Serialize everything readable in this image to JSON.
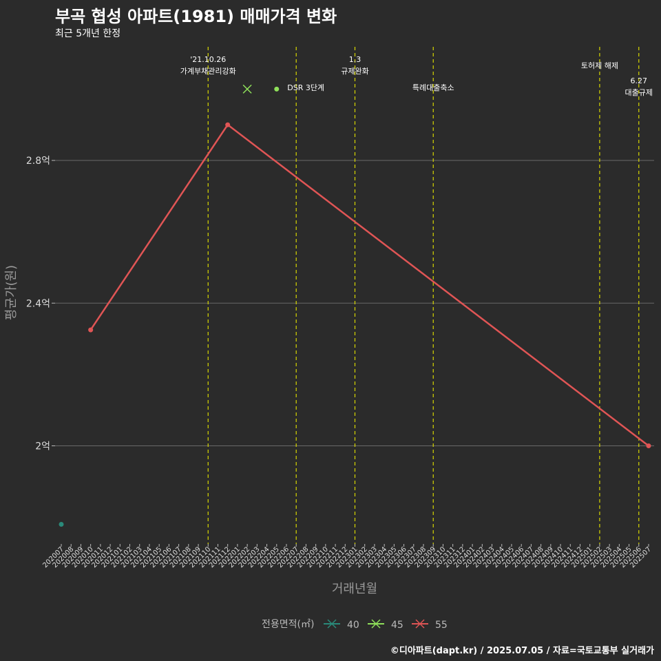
{
  "chart_data": {
    "type": "line",
    "title": "부곡 협성 아파트(1981) 매매가격 변화",
    "subtitle": "최근 5개년 한정",
    "xlabel": "거래년월",
    "ylabel": "평균가(원)",
    "caption": "©디아파트(dapt.kr) / 2025.07.05 / 자료=국토교통부 실거래가",
    "categories": [
      "202007",
      "202008",
      "202009",
      "202010",
      "202011",
      "202012",
      "202101",
      "202102",
      "202103",
      "202104",
      "202105",
      "202106",
      "202107",
      "202108",
      "202109",
      "202110",
      "202111",
      "202112",
      "202201",
      "202202",
      "202203",
      "202204",
      "202205",
      "202206",
      "202207",
      "202208",
      "202209",
      "202210",
      "202211",
      "202212",
      "202301",
      "202302",
      "202303",
      "202304",
      "202305",
      "202306",
      "202307",
      "202308",
      "202309",
      "202310",
      "202311",
      "202312",
      "202401",
      "202402",
      "202403",
      "202404",
      "202405",
      "202406",
      "202407",
      "202408",
      "202409",
      "202410",
      "202411",
      "202412",
      "202501",
      "202502",
      "202503",
      "202504",
      "202505",
      "202506",
      "202507"
    ],
    "ylim": [
      1.71,
      3.13
    ],
    "yticks": [
      {
        "value": 2.0,
        "label": "2억"
      },
      {
        "value": 2.4,
        "label": "2.4억"
      },
      {
        "value": 2.8,
        "label": "2.8억"
      }
    ],
    "series": [
      {
        "name": "40",
        "color": "#2a8a7a",
        "points": [
          {
            "x": "202007",
            "y": 1.78
          }
        ]
      },
      {
        "name": "45",
        "color": "#8fe05a",
        "points": [
          {
            "x": "202202",
            "y": 3.0
          },
          {
            "x": "202205",
            "y": 3.0
          }
        ]
      },
      {
        "name": "55",
        "color": "#e05555",
        "points": [
          {
            "x": "202010",
            "y": 2.325
          },
          {
            "x": "202112",
            "y": 2.9
          },
          {
            "x": "202507",
            "y": 2.0
          }
        ]
      }
    ],
    "events": [
      {
        "x": "202110",
        "lines": [
          "'21.10.26",
          "가계부채관리강화"
        ]
      },
      {
        "x": "202207",
        "lines": [
          "DSR 3단계"
        ]
      },
      {
        "x": "202301",
        "lines": [
          "1.3",
          "규제완화"
        ]
      },
      {
        "x": "202309",
        "lines": [
          "특례대출축소"
        ]
      },
      {
        "x": "202502",
        "lines": [
          "토허제 해제"
        ]
      },
      {
        "x": "202506",
        "lines": [
          "6.27",
          "대출규제"
        ]
      }
    ],
    "legend_title": "전용면적(㎡)",
    "legend_position": "bottom"
  }
}
